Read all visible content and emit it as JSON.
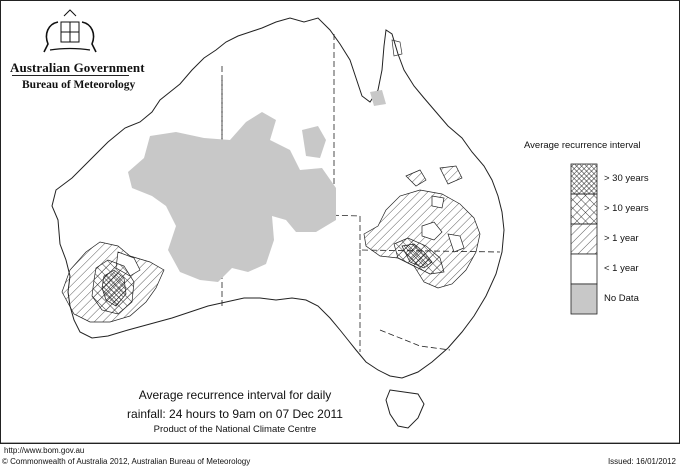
{
  "header": {
    "gov_title": "Australian Government",
    "gov_subtitle": "Bureau of Meteorology"
  },
  "legend": {
    "title": "Average recurrence interval",
    "items": [
      {
        "label": "> 30 years",
        "pattern": "dense-crosshatch"
      },
      {
        "label": "> 10 years",
        "pattern": "crosshatch"
      },
      {
        "label": "> 1 year",
        "pattern": "diagonal-hatch"
      },
      {
        "label": "< 1 year",
        "pattern": "white"
      },
      {
        "label": "No Data",
        "pattern": "grey",
        "color": "#c8c8c8"
      }
    ]
  },
  "caption": {
    "line1": "Average recurrence interval for daily",
    "line2": "rainfall: 24 hours to 9am on 07 Dec 2011",
    "line3": "Product of the National Climate Centre"
  },
  "footer": {
    "url": "http://www.bom.gov.au",
    "copyright": "© Commonwealth of Australia 2012, Australian Bureau of Meteorology",
    "issued": "Issued: 16/01/2012"
  },
  "icons": [
    "coat-of-arms-icon"
  ]
}
